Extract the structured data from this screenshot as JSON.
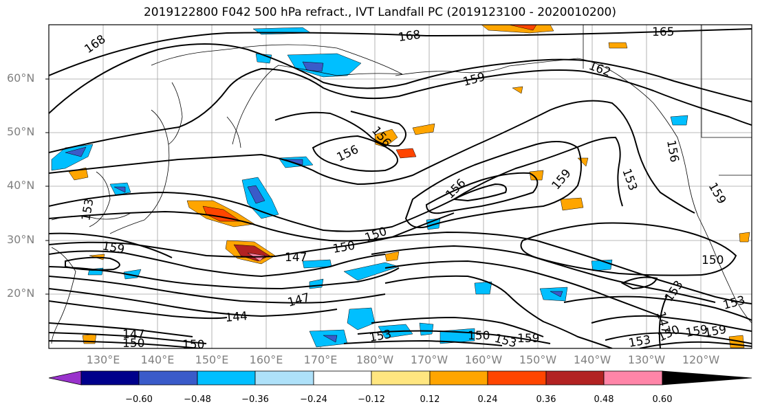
{
  "title": "2019122800 F042 500 hPa refract., IVT Landfall PC (2019123100 - 2020010200)",
  "lat_labels": [
    "60°N",
    "50°N",
    "40°N",
    "30°N",
    "20°N"
  ],
  "lon_labels": [
    "130°E",
    "140°E",
    "150°E",
    "160°E",
    "170°E",
    "180°W",
    "170°W",
    "160°W",
    "150°W",
    "140°W",
    "130°W",
    "120°W"
  ],
  "contour_labels": [
    "168",
    "168",
    "165",
    "162",
    "159",
    "156",
    "156",
    "156",
    "159",
    "153",
    "159",
    "156",
    "159",
    "153",
    "150",
    "147",
    "150",
    "147",
    "144",
    "147",
    "150",
    "150",
    "153",
    "150",
    "153",
    "159",
    "153",
    "147",
    "150",
    "159",
    "153",
    "153",
    "150",
    "159"
  ],
  "colorbar": {
    "ticks": [
      "−0.60",
      "−0.48",
      "−0.36",
      "−0.24",
      "−0.12",
      "0.12",
      "0.24",
      "0.36",
      "0.48",
      "0.60"
    ],
    "colors": [
      "#9932cc",
      "#00008b",
      "#3a5bc9",
      "#00bfff",
      "#aee1f9",
      "#ffffff",
      "#ffe680",
      "#ffa500",
      "#ff4500",
      "#b22222",
      "#ff85a8"
    ]
  }
}
